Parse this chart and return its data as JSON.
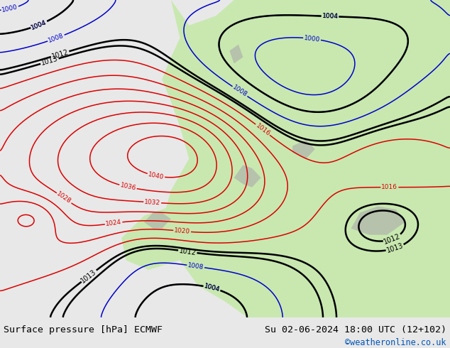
{
  "title_left": "Surface pressure [hPa] ECMWF",
  "title_right": "Su 02-06-2024 18:00 UTC (12+102)",
  "credit": "©weatheronline.co.uk",
  "figsize": [
    6.34,
    4.9
  ],
  "dpi": 100,
  "ocean_color": "#e2e2e2",
  "land_color": "#c8e8b0",
  "bottom_bar_color": "#e8e8e8",
  "red_color": "#dd0000",
  "blue_color": "#0000cc",
  "black_color": "#000000",
  "credit_color": "#0055bb"
}
